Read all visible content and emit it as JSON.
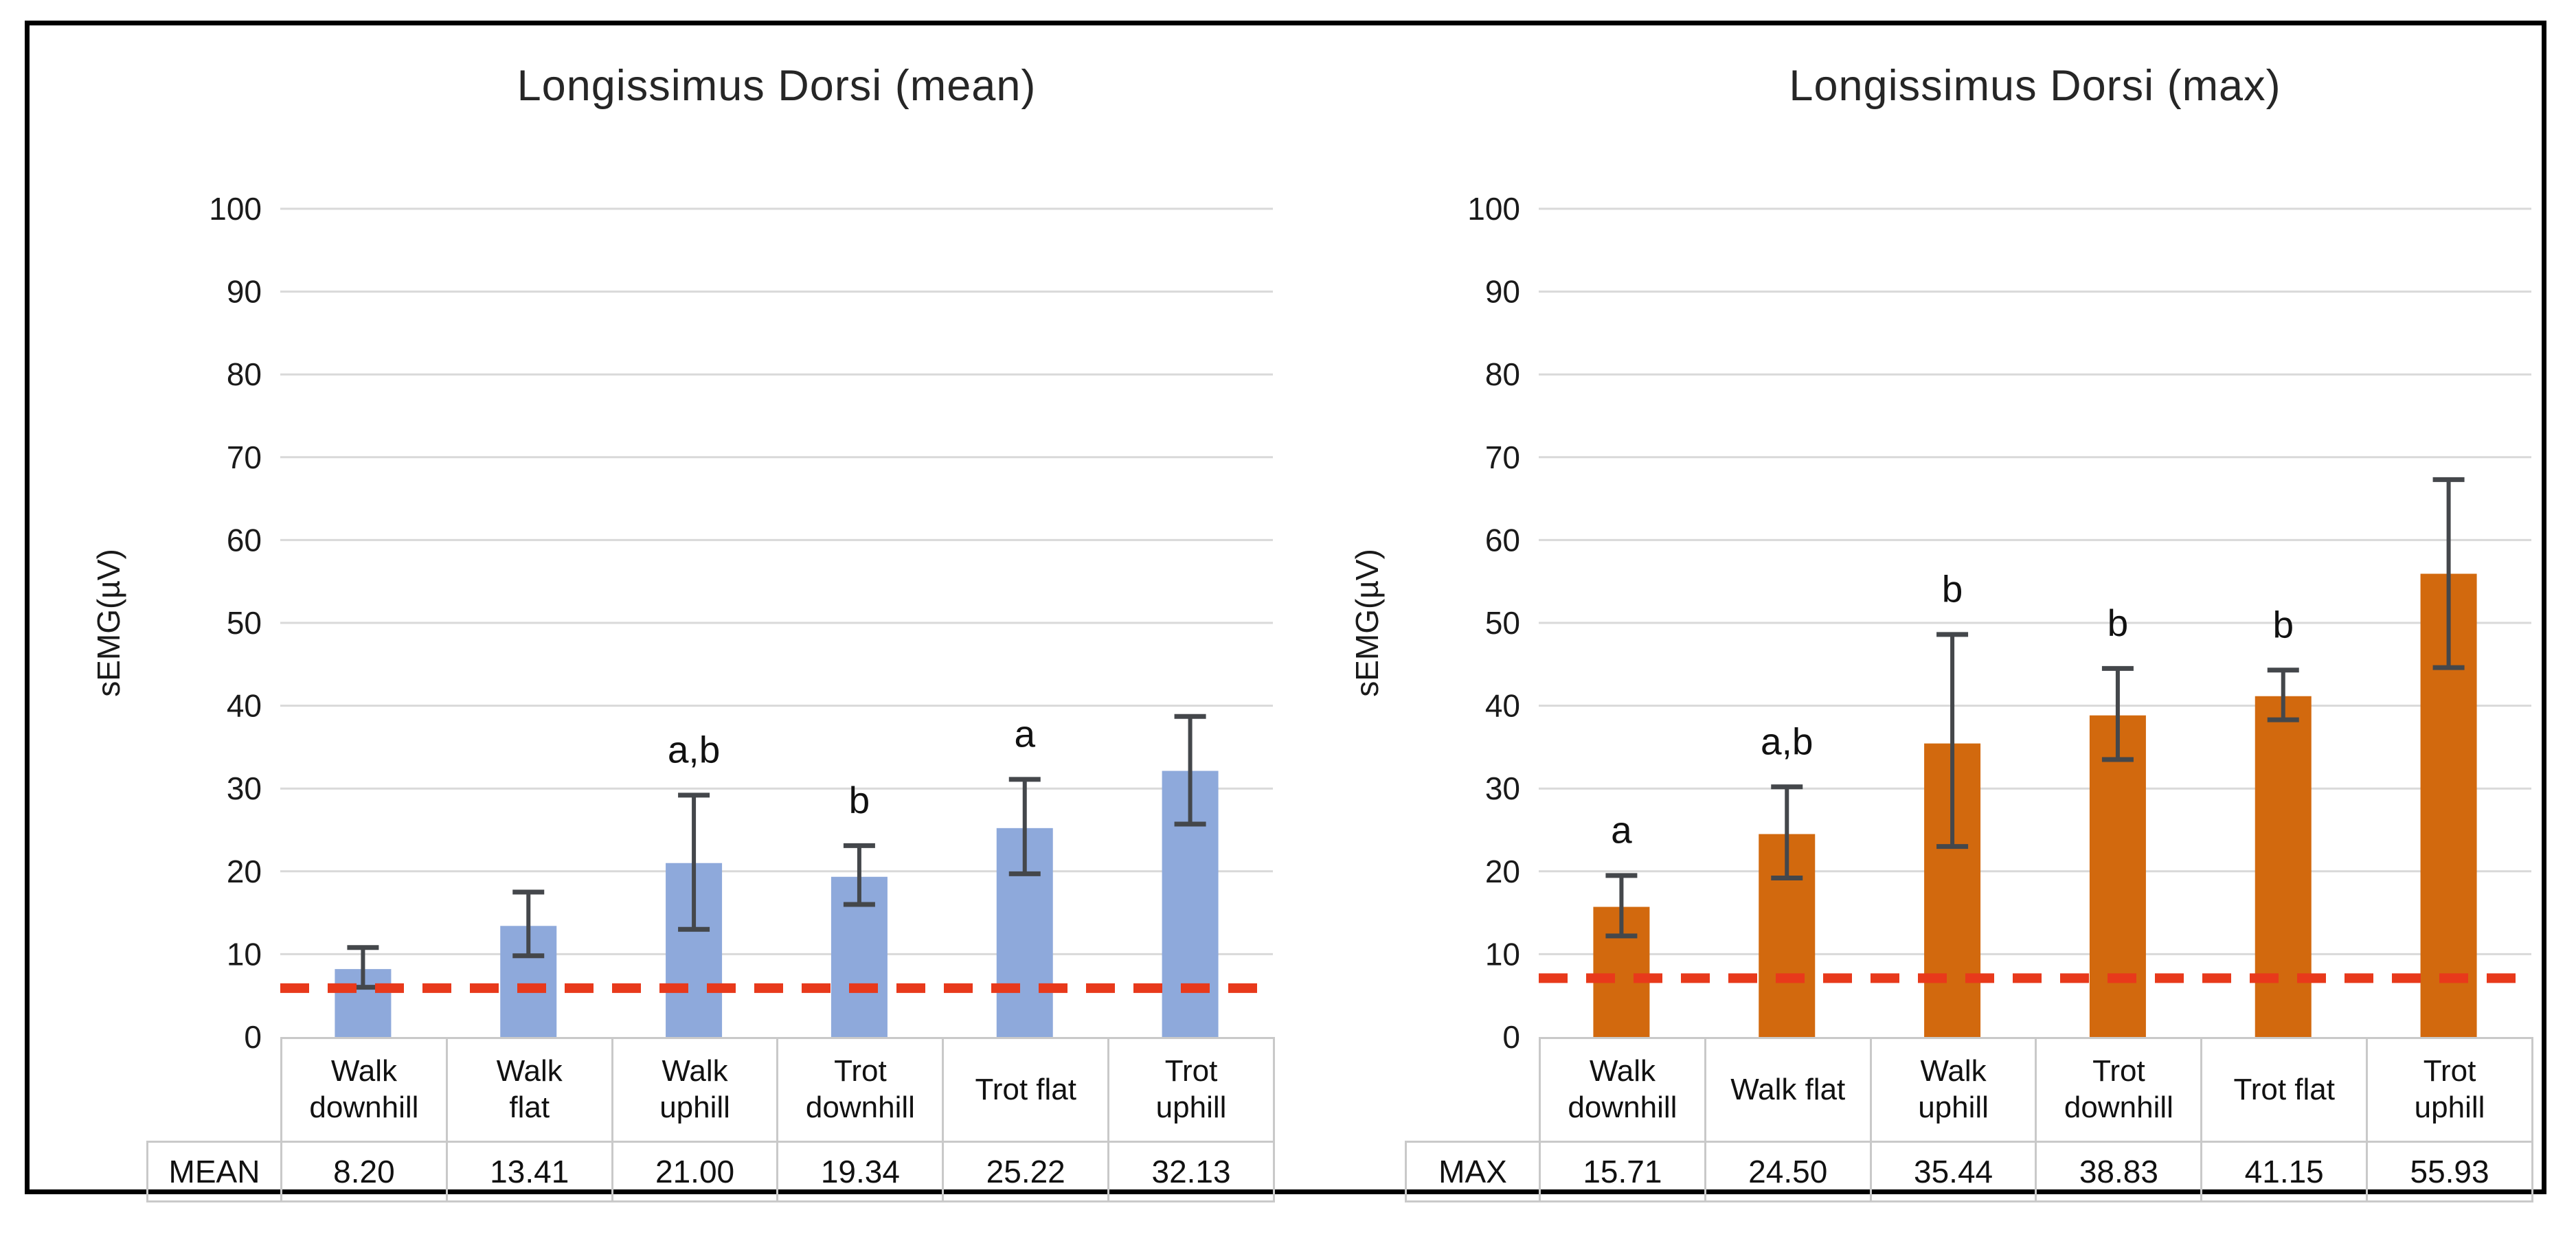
{
  "chart_data": [
    {
      "type": "bar",
      "title": "Longissimus Dorsi (mean)",
      "ylabel": "sEMG(µV)",
      "ylim": [
        0,
        100
      ],
      "ytick_step": 10,
      "grid": true,
      "legend": "none",
      "categories": [
        "Walk downhill",
        "Walk flat",
        "Walk uphill",
        "Trot downhill",
        "Trot flat",
        "Trot uphill"
      ],
      "category_label_lines": [
        [
          "Walk",
          "downhill"
        ],
        [
          "Walk",
          "flat"
        ],
        [
          "Walk",
          "uphill"
        ],
        [
          "Trot",
          "downhill"
        ],
        [
          "Trot flat"
        ],
        [
          "Trot",
          "uphill"
        ]
      ],
      "table_row_label": "MEAN",
      "values": [
        8.2,
        13.41,
        21.0,
        19.34,
        25.22,
        32.13
      ],
      "value_labels": [
        "8.20",
        "13.41",
        "21.00",
        "19.34",
        "25.22",
        "32.13"
      ],
      "error_low": [
        6.0,
        9.8,
        13.0,
        16.0,
        19.7,
        25.7
      ],
      "error_high": [
        10.8,
        17.5,
        29.2,
        23.1,
        31.1,
        38.7
      ],
      "sig_letters": [
        "",
        "",
        "a,b",
        "b",
        "a",
        ""
      ],
      "bar_color": "#8EA9DB",
      "ref_line_y": 5.9,
      "ref_line_color": "#E8391B"
    },
    {
      "type": "bar",
      "title": "Longissimus Dorsi (max)",
      "ylabel": "sEMG(µV)",
      "ylim": [
        0,
        100
      ],
      "ytick_step": 10,
      "grid": true,
      "legend": "none",
      "categories": [
        "Walk downhill",
        "Walk flat",
        "Walk uphill",
        "Trot downhill",
        "Trot flat",
        "Trot uphill"
      ],
      "category_label_lines": [
        [
          "Walk",
          "downhill"
        ],
        [
          "Walk flat"
        ],
        [
          "Walk",
          "uphill"
        ],
        [
          "Trot",
          "downhill"
        ],
        [
          "Trot flat"
        ],
        [
          "Trot",
          "uphill"
        ]
      ],
      "table_row_label": "MAX",
      "values": [
        15.71,
        24.5,
        35.44,
        38.83,
        41.15,
        55.93
      ],
      "value_labels": [
        "15.71",
        "24.50",
        "35.44",
        "38.83",
        "41.15",
        "55.93"
      ],
      "error_low": [
        12.2,
        19.2,
        23.0,
        33.5,
        38.3,
        44.6
      ],
      "error_high": [
        19.5,
        30.2,
        48.6,
        44.5,
        44.3,
        67.3
      ],
      "sig_letters": [
        "a",
        "a,b",
        "b",
        "b",
        "b",
        ""
      ],
      "bar_color": "#D2690E",
      "ref_line_y": 7.1,
      "ref_line_color": "#E8391B"
    }
  ],
  "style_colors": {
    "gridline": "#D9D9D9",
    "error_bar": "#44474B",
    "table_border": "#C9C9C9",
    "text": "#1a1a1a"
  }
}
